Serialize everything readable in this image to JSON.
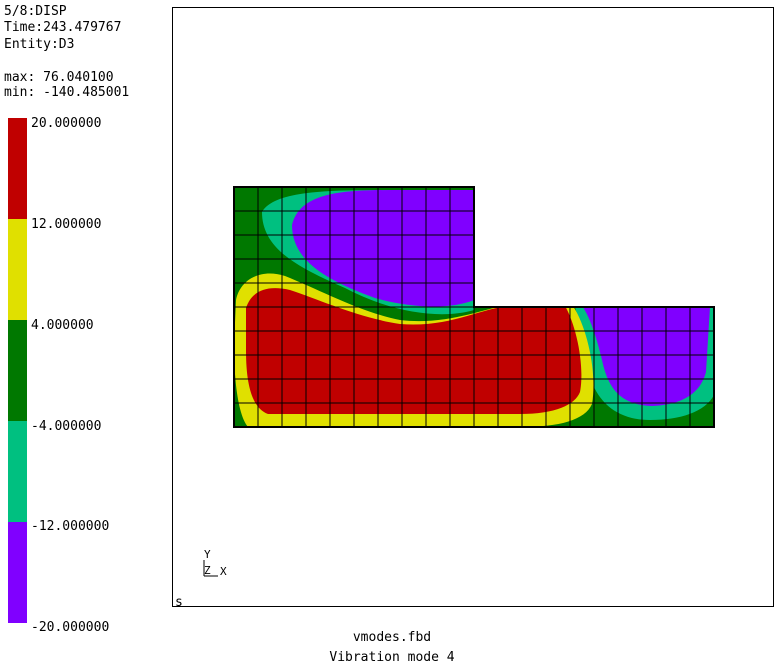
{
  "info": {
    "step": "5/8:DISP",
    "time": "Time:243.479767",
    "entity": "Entity:D3",
    "max": "max: 76.040100",
    "min": "min: -140.485001"
  },
  "legend": {
    "labels": [
      "20.000000",
      "12.000000",
      "4.000000",
      "-4.000000",
      "-12.000000",
      "-20.000000"
    ],
    "colors": [
      "#c00000",
      "#e0e000",
      "#007800",
      "#00c080",
      "#8000ff"
    ]
  },
  "viewport": {
    "mode_letter": "s",
    "axis_y": "Y",
    "axis_z": "Z",
    "axis_x": "X"
  },
  "footer": {
    "filename": "vmodes.fbd",
    "title": "Vibration mode 4"
  }
}
